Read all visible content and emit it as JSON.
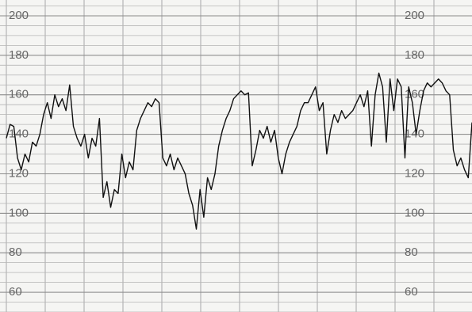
{
  "chart_data": {
    "type": "line",
    "ylim": [
      50,
      208
    ],
    "yticks": [
      60,
      80,
      100,
      120,
      140,
      160,
      180,
      200
    ],
    "grid": true,
    "series": [
      {
        "color": "#111111",
        "values": [
          138,
          145,
          144,
          128,
          122,
          130,
          126,
          136,
          134,
          140,
          150,
          156,
          148,
          160,
          154,
          158,
          152,
          165,
          144,
          138,
          134,
          140,
          128,
          138,
          134,
          148,
          108,
          116,
          103,
          112,
          110,
          130,
          118,
          126,
          122,
          142,
          148,
          152,
          156,
          154,
          158,
          156,
          128,
          124,
          130,
          122,
          128,
          124,
          120,
          110,
          104,
          92,
          112,
          98,
          118,
          112,
          120,
          134,
          142,
          148,
          152,
          158,
          160,
          162,
          160,
          161,
          124,
          132,
          142,
          138,
          144,
          136,
          142,
          128,
          120,
          130,
          136,
          140,
          144,
          152,
          156,
          156,
          160,
          164,
          152,
          156,
          130,
          142,
          150,
          146,
          152,
          148,
          150,
          152,
          156,
          160,
          154,
          162,
          134,
          160,
          171,
          164,
          136,
          168,
          152,
          168,
          164,
          128,
          164,
          156,
          140,
          152,
          162,
          166,
          164,
          166,
          168,
          166,
          162,
          160,
          132,
          124,
          128,
          122,
          118,
          146
        ]
      }
    ]
  }
}
